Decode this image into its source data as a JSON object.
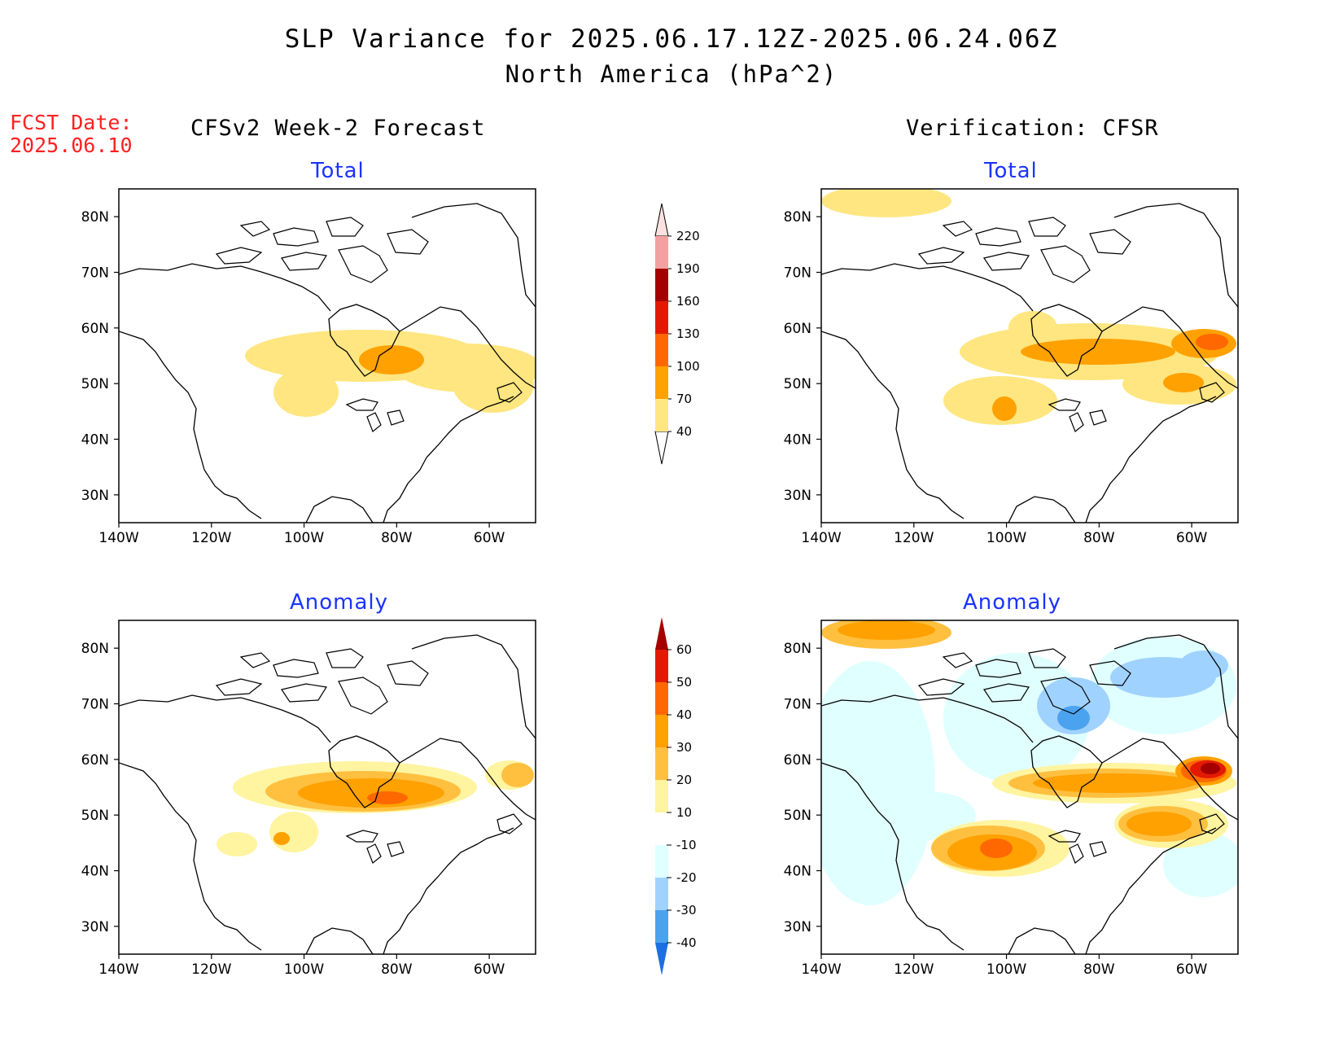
{
  "title_line1": "SLP Variance for 2025.06.17.12Z-2025.06.24.06Z",
  "title_line2": "North America (hPa^2)",
  "fcst_label": "FCST Date:",
  "fcst_date": "2025.06.10",
  "left_column_title": "CFSv2 Week-2 Forecast",
  "right_column_title": "Verification: CFSR",
  "panels": {
    "top_left": {
      "title": "Total"
    },
    "top_right": {
      "title": "Total"
    },
    "bottom_left": {
      "title": "Anomaly"
    },
    "bottom_right": {
      "title": "Anomaly"
    }
  },
  "axes": {
    "lat_labels": [
      "80N",
      "70N",
      "60N",
      "50N",
      "40N",
      "30N"
    ],
    "lon_labels": [
      "140W",
      "120W",
      "100W",
      "80W",
      "60W"
    ]
  },
  "total_colorbar": {
    "labels": [
      "40",
      "70",
      "100",
      "130",
      "160",
      "190",
      "220"
    ],
    "colors": [
      "#ffe680",
      "#ffa100",
      "#ff6800",
      "#e31a00",
      "#a50000",
      "#f3a0a0",
      "#fde1e1"
    ]
  },
  "anomaly_colorbar": {
    "labels": [
      "60",
      "50",
      "40",
      "30",
      "20",
      "10",
      "-10",
      "-20",
      "-30",
      "-40"
    ],
    "colors_top_to_bottom": [
      "#a50000",
      "#e31a00",
      "#ff6800",
      "#ffa100",
      "#ffc040",
      "#fff4a0",
      "#ffffff",
      "#e0ffff",
      "#a0d2ff",
      "#4ba3f0",
      "#1c6fe0"
    ]
  },
  "colors": {
    "title_text": "#000000",
    "fcst_text": "#ff2020",
    "panel_title": "#1a33ff"
  }
}
